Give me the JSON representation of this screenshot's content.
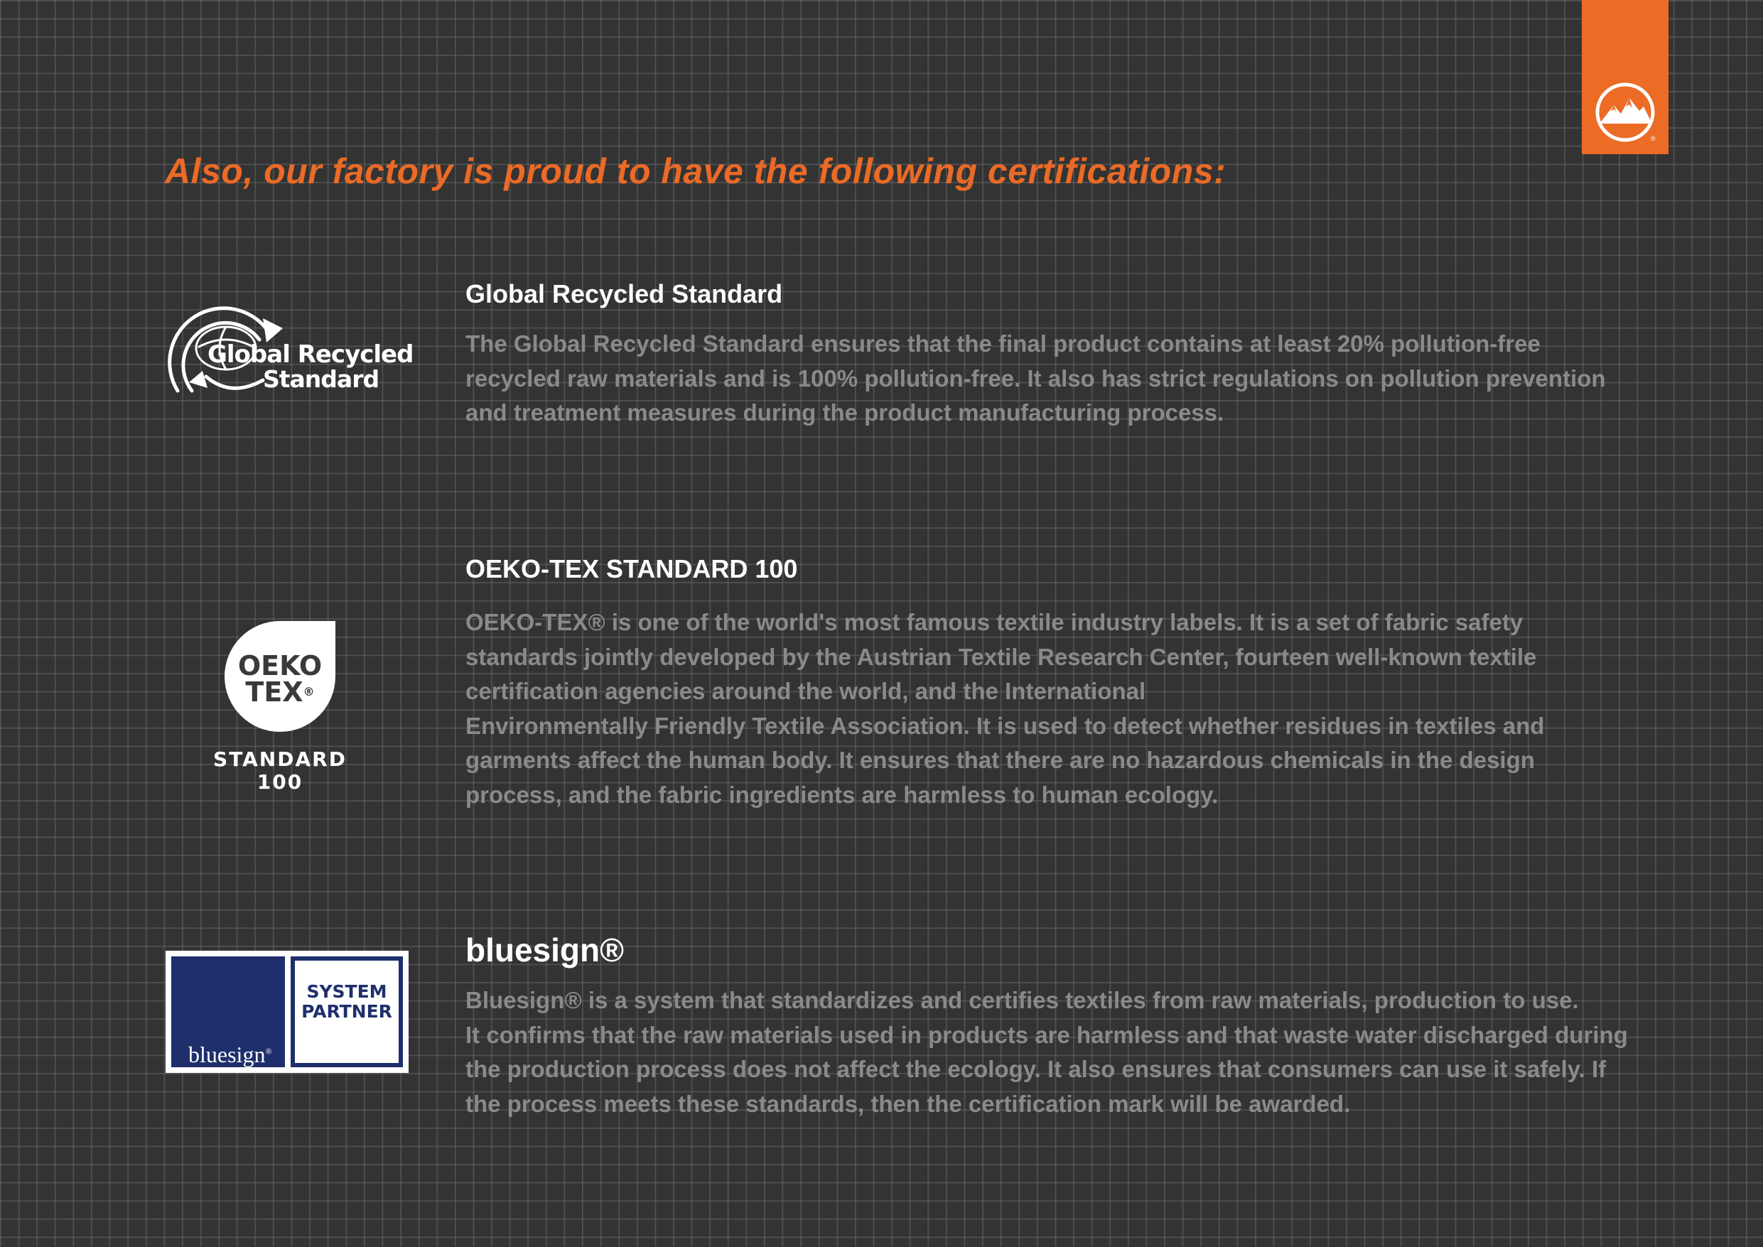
{
  "headline": "Also, our factory is proud to have the following certifications:",
  "brand_icon": "mountain-logo-icon",
  "colors": {
    "accent": "#ec6b25",
    "background": "#333333",
    "body_text": "#8a8a8a",
    "bluesign_navy": "#1f2f6c"
  },
  "certifications": [
    {
      "title": "Global Recycled Standard",
      "logo": {
        "icon": "recycle-globe-icon",
        "line1": "Global Recycled",
        "line2": "Standard"
      },
      "lines": [
        "The Global Recycled Standard ensures that the final product contains at least 20% pollution-free",
        "recycled raw materials and is 100% pollution-free. It also has strict regulations on pollution prevention",
        "and treatment measures during the product manufacturing process."
      ]
    },
    {
      "title": "OEKO-TEX STANDARD 100",
      "logo": {
        "word1": "OEKO",
        "word2": "TEX",
        "reg": "®",
        "std1": "STANDARD",
        "std2": "100"
      },
      "lines": [
        "OEKO-TEX® is one of the world's most famous textile industry labels. It is a set of fabric safety",
        "standards jointly developed by the Austrian Textile Research Center, fourteen well-known textile",
        "certification agencies around the world, and the International",
        "Environmentally Friendly Textile Association. It is used to detect whether residues in textiles and",
        "garments affect the human body. It ensures that there are no hazardous chemicals in the design",
        "process, and the fabric ingredients are harmless to human ecology."
      ]
    },
    {
      "title": "bluesign®",
      "logo": {
        "word": "bluesign",
        "reg": "®",
        "line1": "SYSTEM",
        "line2": "PARTNER"
      },
      "lines": [
        "Bluesign® is a system that standardizes and certifies textiles from raw materials, production to use.",
        "It confirms that the raw materials used in products are harmless and that waste water discharged during",
        "the production process does not affect the ecology. It also ensures that consumers can use it safely. If",
        "the process meets these standards, then the certification mark will be awarded."
      ]
    }
  ]
}
